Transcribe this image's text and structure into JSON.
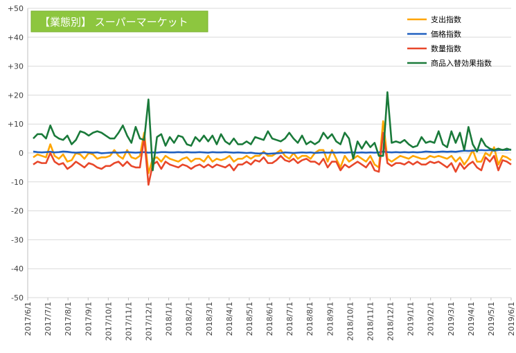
{
  "chart_data": {
    "type": "line",
    "title": "【業態別】 スーパーマーケット",
    "xlabel": "",
    "ylabel": "",
    "ylim": [
      -50,
      50
    ],
    "ytick_values": [
      50,
      40,
      30,
      20,
      10,
      0,
      -10,
      -20,
      -30,
      -40,
      -50
    ],
    "ytick_labels": [
      "+50",
      "+40",
      "+30",
      "+20",
      "+10",
      "0",
      "-10",
      "-20",
      "-30",
      "-40",
      "-50"
    ],
    "x_tick_labels": [
      "2017/6/1",
      "2017/7/1",
      "2017/8/1",
      "2017/9/1",
      "2017/10/1",
      "2017/11/1",
      "2017/12/1",
      "2018/1/1",
      "2018/2/1",
      "2018/3/1",
      "2018/4/1",
      "2018/5/1",
      "2018/6/1",
      "2018/7/1",
      "2018/8/1",
      "2018/9/1",
      "2018/10/1",
      "2018/11/1",
      "2018/12/1",
      "2019/1/1",
      "2019/2/1",
      "2019/3/1",
      "2019/4/1",
      "2019/5/1",
      "2019/6/1"
    ],
    "grid": true,
    "legend_position": "top-right",
    "series": [
      {
        "name": "支出指数",
        "color": "#FFA500",
        "values": [
          -1.5,
          -0.5,
          -1,
          -1.5,
          3,
          -1,
          -2,
          -0.5,
          -3,
          -2.5,
          0,
          -0.5,
          -2,
          0,
          -0.5,
          -2,
          -1.5,
          -1.5,
          -1,
          1,
          -1,
          -2,
          1,
          -1.5,
          -2,
          -1,
          7,
          -7,
          -2,
          -1.5,
          -3,
          -1,
          -2,
          -2.5,
          -3,
          -2,
          -1.5,
          -3,
          -2,
          -2,
          -3,
          -1,
          -3,
          -2,
          -2.5,
          -2,
          -1,
          -3,
          -2,
          -2,
          -1,
          -2,
          -1,
          -1,
          0.5,
          -1,
          -1,
          0,
          1,
          -1,
          -2,
          0,
          -2,
          -1,
          -1,
          -2,
          0,
          1,
          1,
          -3,
          1,
          -2,
          -5,
          -1,
          -3,
          -2,
          -1,
          -2,
          -3,
          -1,
          -4,
          -5,
          11,
          -2,
          -3,
          -2,
          -1,
          -1.5,
          -2,
          -1,
          -1.5,
          -2,
          -2,
          -1,
          -1.5,
          -1,
          -1.5,
          -2,
          -1,
          -3,
          -1.5,
          -4,
          -2,
          1,
          -3,
          -3,
          0,
          -1,
          2,
          -4,
          -1,
          -1.5,
          -2.5
        ]
      },
      {
        "name": "価格指数",
        "color": "#1F5FBF",
        "values": [
          0.5,
          0.3,
          0.2,
          0.3,
          0.4,
          0.2,
          0.3,
          0.5,
          0.4,
          0.2,
          0.1,
          0.2,
          0.3,
          0.2,
          0.1,
          0.2,
          -0.1,
          0,
          0.1,
          0.2,
          0.1,
          0.2,
          0.3,
          0.2,
          0.1,
          0.2,
          0.3,
          0.1,
          0.2,
          0.1,
          0.3,
          0.3,
          0.2,
          0.2,
          0.3,
          0.2,
          0.3,
          0.2,
          0.2,
          0.3,
          0.2,
          0.1,
          0.3,
          0.2,
          0.2,
          0.3,
          0.2,
          0.1,
          0.2,
          0.1,
          0,
          0.1,
          -0.1,
          -0.2,
          0,
          -0.3,
          -0.2,
          -0.1,
          0,
          0.2,
          0.1,
          0,
          0.1,
          0.2,
          0.1,
          0.2,
          0,
          0.1,
          0.2,
          0.1,
          0.2,
          0.1,
          0.2,
          0.1,
          0.2,
          0.2,
          0.1,
          0.2,
          0.1,
          0.2,
          0.1,
          0.2,
          0.5,
          0.3,
          0.2,
          0.3,
          0.2,
          0.3,
          0.2,
          0.3,
          0.2,
          0.3,
          0.5,
          0.4,
          0.3,
          0.4,
          0.5,
          0.4,
          0.5,
          0.4,
          0.6,
          0.8,
          0.7,
          0.8,
          0.9,
          1,
          0.9,
          1,
          0.8,
          1,
          1.1,
          1,
          1.2
        ]
      },
      {
        "name": "数量指数",
        "color": "#E8472A",
        "values": [
          -4,
          -3,
          -3.5,
          -3.5,
          0,
          -3,
          -4,
          -3.5,
          -5.5,
          -4.5,
          -3,
          -4,
          -5,
          -3.5,
          -4,
          -5,
          -5.5,
          -4.5,
          -4.5,
          -3.5,
          -3,
          -4.5,
          -3,
          -4.5,
          -5,
          -5,
          5.5,
          -11,
          -4,
          -3,
          -5.5,
          -3,
          -4,
          -4.5,
          -5,
          -4,
          -4.5,
          -5.5,
          -4.5,
          -4,
          -5,
          -4,
          -5,
          -4,
          -4.5,
          -5,
          -4,
          -6,
          -4,
          -4,
          -3,
          -4,
          -2.5,
          -3,
          -1.5,
          -3.5,
          -3.5,
          -2.5,
          -1,
          -2.5,
          -3,
          -2,
          -3.5,
          -2.5,
          -2,
          -3,
          -3,
          -4,
          -2,
          -5,
          -3,
          -3,
          -6,
          -4,
          -5,
          -4,
          -3,
          -4,
          -5,
          -3,
          -6,
          -6.5,
          7,
          -3.5,
          -4.5,
          -3.5,
          -3.5,
          -4,
          -3,
          -4,
          -3,
          -4,
          -4,
          -3,
          -3.5,
          -3,
          -4,
          -5,
          -3.5,
          -6.5,
          -3.5,
          -5.5,
          -4,
          -3,
          -5,
          -6,
          -1.5,
          -3,
          -1,
          -6,
          -2.5,
          -3,
          -4
        ]
      },
      {
        "name": "商品入替効果指数",
        "color": "#1A7A3A",
        "values": [
          5,
          6.5,
          6.5,
          5,
          9.5,
          6,
          5,
          4.5,
          6,
          3,
          4.5,
          7.5,
          7,
          6,
          7,
          7.5,
          7,
          6,
          5,
          5,
          7,
          9.5,
          6,
          3.5,
          9,
          5,
          4.5,
          18.5,
          -6,
          5.5,
          6.5,
          2.5,
          5.5,
          3.5,
          6,
          5.5,
          3,
          2.5,
          5.5,
          4,
          6,
          4,
          6,
          3,
          6.5,
          4,
          3,
          5,
          3,
          3,
          4,
          3,
          5.5,
          5,
          4.5,
          7.5,
          5,
          4.5,
          4,
          5,
          7,
          5,
          3.5,
          6,
          3,
          4,
          3,
          4,
          7,
          5,
          6.5,
          4,
          3,
          7,
          5,
          -2,
          4,
          1.5,
          4,
          2,
          3.5,
          -1,
          -1,
          21,
          3.5,
          4,
          3.5,
          4.5,
          3,
          2,
          2.5,
          5.5,
          3.5,
          4,
          3.5,
          7.5,
          3,
          2,
          7.5,
          3.5,
          7,
          1,
          9,
          3,
          0.5,
          5,
          2.5,
          1.5,
          1,
          1.5,
          1,
          1.5,
          1
        ]
      }
    ]
  }
}
